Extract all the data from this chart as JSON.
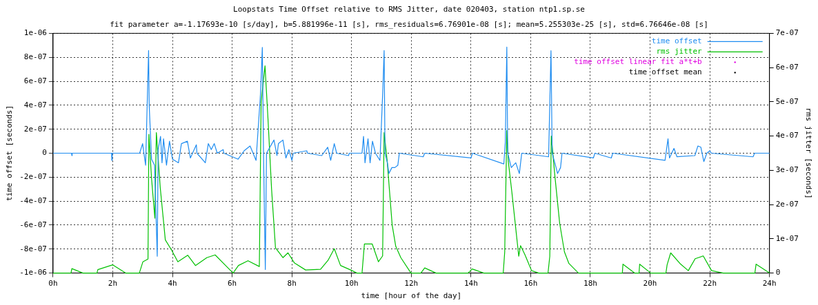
{
  "chart_data": {
    "type": "line",
    "title": "Loopstats Time Offset relative to RMS Jitter, date 020403, station ntp1.sp.se",
    "subtitle": "fit parameter a=-1.17693e-10 [s/day], b=5.881996e-11 [s], rms_residuals=6.76901e-08 [s]; mean=5.255303e-25 [s], std=6.76646e-08 [s]",
    "xlabel": "time [hour of the day]",
    "ylabel": "time offset [seconds]",
    "y2label": "rms jitter [seconds]",
    "xlim": [
      0,
      24
    ],
    "xticks": [
      {
        "value": 0,
        "label": "0h"
      },
      {
        "value": 2,
        "label": "2h"
      },
      {
        "value": 4,
        "label": "4h"
      },
      {
        "value": 6,
        "label": "6h"
      },
      {
        "value": 8,
        "label": "8h"
      },
      {
        "value": 10,
        "label": "10h"
      },
      {
        "value": 12,
        "label": "12h"
      },
      {
        "value": 14,
        "label": "14h"
      },
      {
        "value": 16,
        "label": "16h"
      },
      {
        "value": 18,
        "label": "18h"
      },
      {
        "value": 20,
        "label": "20h"
      },
      {
        "value": 22,
        "label": "22h"
      },
      {
        "value": 24,
        "label": "24h"
      }
    ],
    "ylim": [
      -1e-06,
      1e-06
    ],
    "yticks": [
      {
        "value": -1e-06,
        "label": "-1e-06"
      },
      {
        "value": -8e-07,
        "label": "-8e-07"
      },
      {
        "value": -6e-07,
        "label": "-6e-07"
      },
      {
        "value": -4e-07,
        "label": "-4e-07"
      },
      {
        "value": -2e-07,
        "label": "-2e-07"
      },
      0,
      {
        "value": 2e-07,
        "label": "2e-07"
      },
      {
        "value": 4e-07,
        "label": "4e-07"
      },
      {
        "value": 6e-07,
        "label": "6e-07"
      },
      {
        "value": 8e-07,
        "label": "8e-07"
      },
      {
        "value": 1e-06,
        "label": "1e-06"
      }
    ],
    "y2lim": [
      0,
      7e-07
    ],
    "y2ticks": [
      0,
      {
        "value": 1e-07,
        "label": "1e-07"
      },
      {
        "value": 2e-07,
        "label": "2e-07"
      },
      {
        "value": 3e-07,
        "label": "3e-07"
      },
      {
        "value": 4e-07,
        "label": "4e-07"
      },
      {
        "value": 5e-07,
        "label": "5e-07"
      },
      {
        "value": 6e-07,
        "label": "6e-07"
      },
      {
        "value": 7e-07,
        "label": "7e-07"
      }
    ],
    "grid": true,
    "legend": "top right",
    "marker": "none",
    "line_style": "solid",
    "series": [
      {
        "name": "time offset",
        "color": "#1e8cf0",
        "x": [
          0,
          0.62,
          0.63,
          0.64,
          1.96,
          1.97,
          1.98,
          2.9,
          3.0,
          3.1,
          3.2,
          3.22,
          3.3,
          3.4,
          3.49,
          3.52,
          3.6,
          3.65,
          3.7,
          3.8,
          3.9,
          4.0,
          4.2,
          4.3,
          4.5,
          4.6,
          4.8,
          4.82,
          5.1,
          5.2,
          5.3,
          5.4,
          5.5,
          5.7,
          5.72,
          6.2,
          6.4,
          6.6,
          6.8,
          6.95,
          7.01,
          7.05,
          7.11,
          7.15,
          7.4,
          7.5,
          7.55,
          7.7,
          7.8,
          7.9,
          8.0,
          8.05,
          8.5,
          8.52,
          9.0,
          9.2,
          9.3,
          9.42,
          9.5,
          9.9,
          9.92,
          10.35,
          10.4,
          10.45,
          10.55,
          10.62,
          10.7,
          10.8,
          10.95,
          11.05,
          11.09,
          11.12,
          11.2,
          11.25,
          11.35,
          11.45,
          11.55,
          11.6,
          12.4,
          12.45,
          14.0,
          14.05,
          15.1,
          15.15,
          15.2,
          15.23,
          15.35,
          15.5,
          15.62,
          15.7,
          16.6,
          16.68,
          16.72,
          16.85,
          16.9,
          17.0,
          17.05,
          18.1,
          18.15,
          18.7,
          18.75,
          20.5,
          20.6,
          20.65,
          20.8,
          20.9,
          21.5,
          21.6,
          21.7,
          21.8,
          21.9,
          22.0,
          22.05,
          23.45,
          23.5,
          24
        ],
        "values": [
          0,
          0,
          -2e-08,
          0,
          0,
          -6e-08,
          0,
          0,
          8e-08,
          -1e-07,
          8.56e-07,
          4e-07,
          -5e-08,
          -1e-07,
          -8.6e-07,
          3e-08,
          1.4e-07,
          -8e-08,
          1.2e-07,
          -1e-07,
          1e-07,
          -5e-08,
          -8e-08,
          8e-08,
          1e-07,
          -4e-08,
          7e-08,
          0,
          -8e-08,
          8e-08,
          3e-08,
          8e-08,
          0,
          3e-08,
          0,
          -5e-08,
          2e-08,
          6e-08,
          -6e-08,
          5e-07,
          8.83e-07,
          0,
          -9.7e-07,
          0,
          1.1e-07,
          -2e-08,
          8e-08,
          1.1e-07,
          -4e-08,
          3e-08,
          -6e-08,
          0,
          2e-08,
          0,
          -2e-08,
          5e-08,
          -6e-08,
          8e-08,
          0,
          -2e-08,
          0,
          0,
          1.4e-07,
          -8e-08,
          1.2e-07,
          -8e-08,
          1e-07,
          0,
          -6e-08,
          5.5e-07,
          8.56e-07,
          0,
          -8e-08,
          -1.7e-07,
          -1.2e-07,
          -1.2e-07,
          -1e-07,
          0,
          -3e-08,
          0,
          -4e-08,
          0,
          -9e-08,
          9e-08,
          8.85e-07,
          0,
          -1.2e-07,
          -8e-08,
          -1.7e-07,
          0,
          -3e-08,
          8.55e-07,
          0,
          -1.2e-07,
          -1.7e-07,
          -1.2e-07,
          0,
          -4e-08,
          0,
          -4e-08,
          0,
          -6e-08,
          1.2e-07,
          -4e-08,
          4e-08,
          -3e-08,
          -2e-08,
          6e-08,
          5e-08,
          -7e-08,
          0,
          2e-08,
          0,
          -3e-08,
          0,
          0
        ]
      },
      {
        "name": "rms jitter",
        "color": "#00c000",
        "axis": "y2",
        "x": [
          0,
          0.6,
          0.63,
          1.0,
          1.47,
          1.5,
          2.0,
          2.43,
          2.89,
          3.01,
          3.18,
          3.21,
          3.3,
          3.41,
          3.46,
          3.59,
          3.76,
          3.97,
          4.18,
          4.51,
          4.77,
          5.15,
          5.43,
          5.78,
          6.03,
          6.21,
          6.53,
          6.91,
          6.97,
          7.1,
          7.2,
          7.32,
          7.45,
          7.7,
          7.87,
          8.08,
          8.46,
          8.96,
          9.21,
          9.42,
          9.63,
          9.97,
          10.18,
          10.35,
          10.43,
          10.69,
          10.9,
          11.04,
          11.09,
          11.19,
          11.36,
          11.48,
          11.65,
          11.99,
          12.32,
          12.45,
          12.83,
          13.9,
          14.04,
          14.43,
          15.08,
          15.13,
          15.2,
          15.25,
          15.37,
          15.5,
          15.6,
          15.66,
          15.8,
          16.03,
          16.27,
          16.58,
          16.64,
          16.69,
          16.81,
          16.97,
          17.13,
          17.28,
          17.6,
          19.07,
          19.09,
          19.48,
          19.63,
          19.65,
          20.02,
          20.53,
          20.57,
          20.69,
          21.0,
          21.28,
          21.51,
          21.78,
          22.06,
          22.45,
          23.51,
          23.55,
          24
        ],
        "values": [
          0,
          0,
          1.3e-08,
          0,
          0,
          1e-08,
          2.4e-08,
          0,
          0,
          3.3e-08,
          4.1e-08,
          4.05e-07,
          2.75e-07,
          1.6e-07,
          4.1e-07,
          2.5e-07,
          9.7e-08,
          6.7e-08,
          3.3e-08,
          5.2e-08,
          2.2e-08,
          4.5e-08,
          5.3e-08,
          2.2e-08,
          0,
          2.2e-08,
          3.6e-08,
          1.9e-08,
          5e-07,
          6.05e-07,
          4.5e-07,
          2.45e-07,
          7.4e-08,
          4.5e-08,
          5.9e-08,
          3e-08,
          9e-09,
          1.1e-08,
          3.7e-08,
          7.1e-08,
          2.2e-08,
          9e-09,
          0,
          0,
          8.5e-08,
          8.5e-08,
          3.3e-08,
          5e-08,
          4.1e-07,
          3.3e-07,
          1.4e-07,
          7.8e-08,
          4.5e-08,
          0,
          0,
          1.5e-08,
          0,
          0,
          1.2e-08,
          0,
          0,
          6.2e-08,
          4.16e-07,
          3.26e-07,
          2.36e-07,
          1.3e-07,
          4.9e-08,
          8e-08,
          5.5e-08,
          7e-09,
          0,
          0,
          4.9e-08,
          4e-07,
          2.84e-07,
          1.46e-07,
          6.2e-08,
          2.8e-08,
          0,
          0,
          2.6e-08,
          0,
          0,
          2.6e-08,
          0,
          0,
          2.4e-08,
          5.9e-08,
          2.8e-08,
          7e-09,
          4.2e-08,
          5e-08,
          7e-09,
          0,
          0,
          2.6e-08,
          0
        ]
      },
      {
        "name": "time offset linear fit a*t+b",
        "color": "#e000e0",
        "type": "scatter",
        "values": [
          null
        ]
      },
      {
        "name": "time offset mean",
        "color": "#000000",
        "type": "scatter",
        "values": [
          null
        ]
      }
    ]
  }
}
